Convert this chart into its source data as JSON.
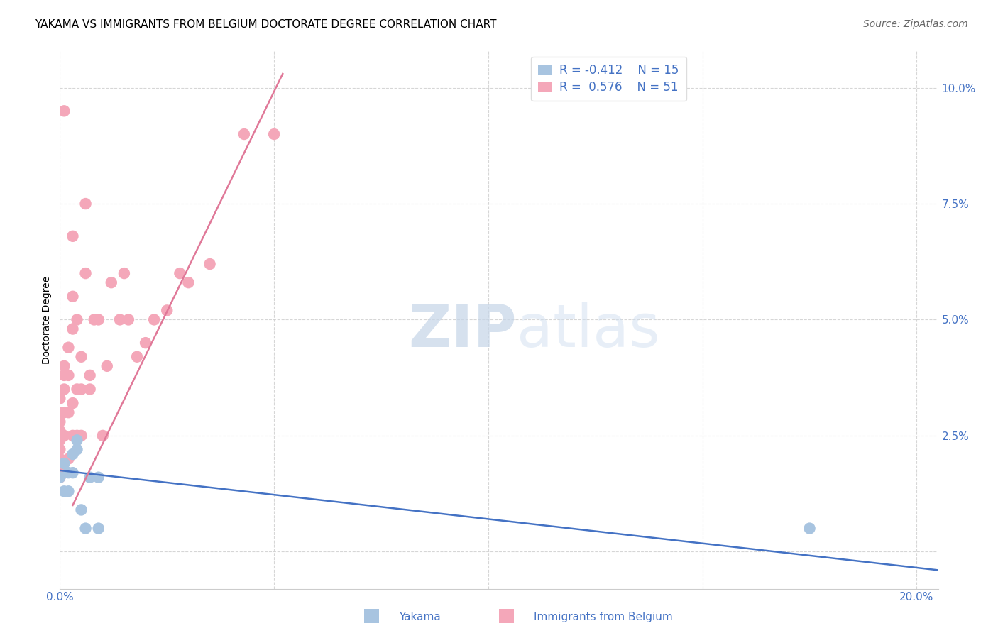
{
  "title": "YAKAMA VS IMMIGRANTS FROM BELGIUM DOCTORATE DEGREE CORRELATION CHART",
  "source": "Source: ZipAtlas.com",
  "ylabel": "Doctorate Degree",
  "xlim": [
    0.0,
    0.205
  ],
  "ylim": [
    -0.008,
    0.108
  ],
  "xticks": [
    0.0,
    0.05,
    0.1,
    0.15,
    0.2
  ],
  "xtick_labels": [
    "0.0%",
    "",
    "",
    "",
    "20.0%"
  ],
  "ytick_labels": [
    "",
    "2.5%",
    "5.0%",
    "7.5%",
    "10.0%"
  ],
  "yticks": [
    0.0,
    0.025,
    0.05,
    0.075,
    0.1
  ],
  "legend_r1": "R = -0.412",
  "legend_n1": "N = 15",
  "legend_r2": "R =  0.576",
  "legend_n2": "N = 51",
  "yakama_color": "#a8c4e0",
  "belgium_color": "#f4a7b9",
  "line_yakama_color": "#4472c4",
  "line_belgium_color": "#e07898",
  "watermark_zip": "ZIP",
  "watermark_atlas": "atlas",
  "yakama_x": [
    0.0,
    0.001,
    0.001,
    0.002,
    0.002,
    0.003,
    0.003,
    0.004,
    0.004,
    0.005,
    0.006,
    0.007,
    0.009,
    0.009,
    0.175
  ],
  "yakama_y": [
    0.016,
    0.013,
    0.019,
    0.013,
    0.017,
    0.017,
    0.021,
    0.024,
    0.022,
    0.009,
    0.005,
    0.016,
    0.016,
    0.005,
    0.005
  ],
  "belgium_x": [
    0.0,
    0.0,
    0.0,
    0.0,
    0.0,
    0.0,
    0.0,
    0.0,
    0.0,
    0.001,
    0.001,
    0.001,
    0.001,
    0.001,
    0.002,
    0.002,
    0.002,
    0.002,
    0.003,
    0.003,
    0.003,
    0.003,
    0.004,
    0.004,
    0.004,
    0.005,
    0.005,
    0.005,
    0.006,
    0.006,
    0.007,
    0.007,
    0.008,
    0.009,
    0.01,
    0.011,
    0.012,
    0.014,
    0.015,
    0.016,
    0.018,
    0.02,
    0.022,
    0.025,
    0.028,
    0.03,
    0.035,
    0.043,
    0.05,
    0.003,
    0.001
  ],
  "belgium_y": [
    0.016,
    0.018,
    0.02,
    0.022,
    0.024,
    0.026,
    0.028,
    0.03,
    0.033,
    0.025,
    0.03,
    0.035,
    0.038,
    0.04,
    0.02,
    0.03,
    0.038,
    0.044,
    0.025,
    0.032,
    0.048,
    0.055,
    0.025,
    0.035,
    0.05,
    0.025,
    0.035,
    0.042,
    0.06,
    0.075,
    0.035,
    0.038,
    0.05,
    0.05,
    0.025,
    0.04,
    0.058,
    0.05,
    0.06,
    0.05,
    0.042,
    0.045,
    0.05,
    0.052,
    0.06,
    0.058,
    0.062,
    0.09,
    0.09,
    0.068,
    0.095
  ],
  "yakama_line_x": [
    0.0,
    0.205
  ],
  "yakama_line_y": [
    0.0175,
    -0.004
  ],
  "belgium_line_x": [
    0.003,
    0.052
  ],
  "belgium_line_y": [
    0.01,
    0.103
  ],
  "title_fontsize": 11,
  "axis_label_fontsize": 10,
  "tick_fontsize": 11,
  "source_fontsize": 10
}
